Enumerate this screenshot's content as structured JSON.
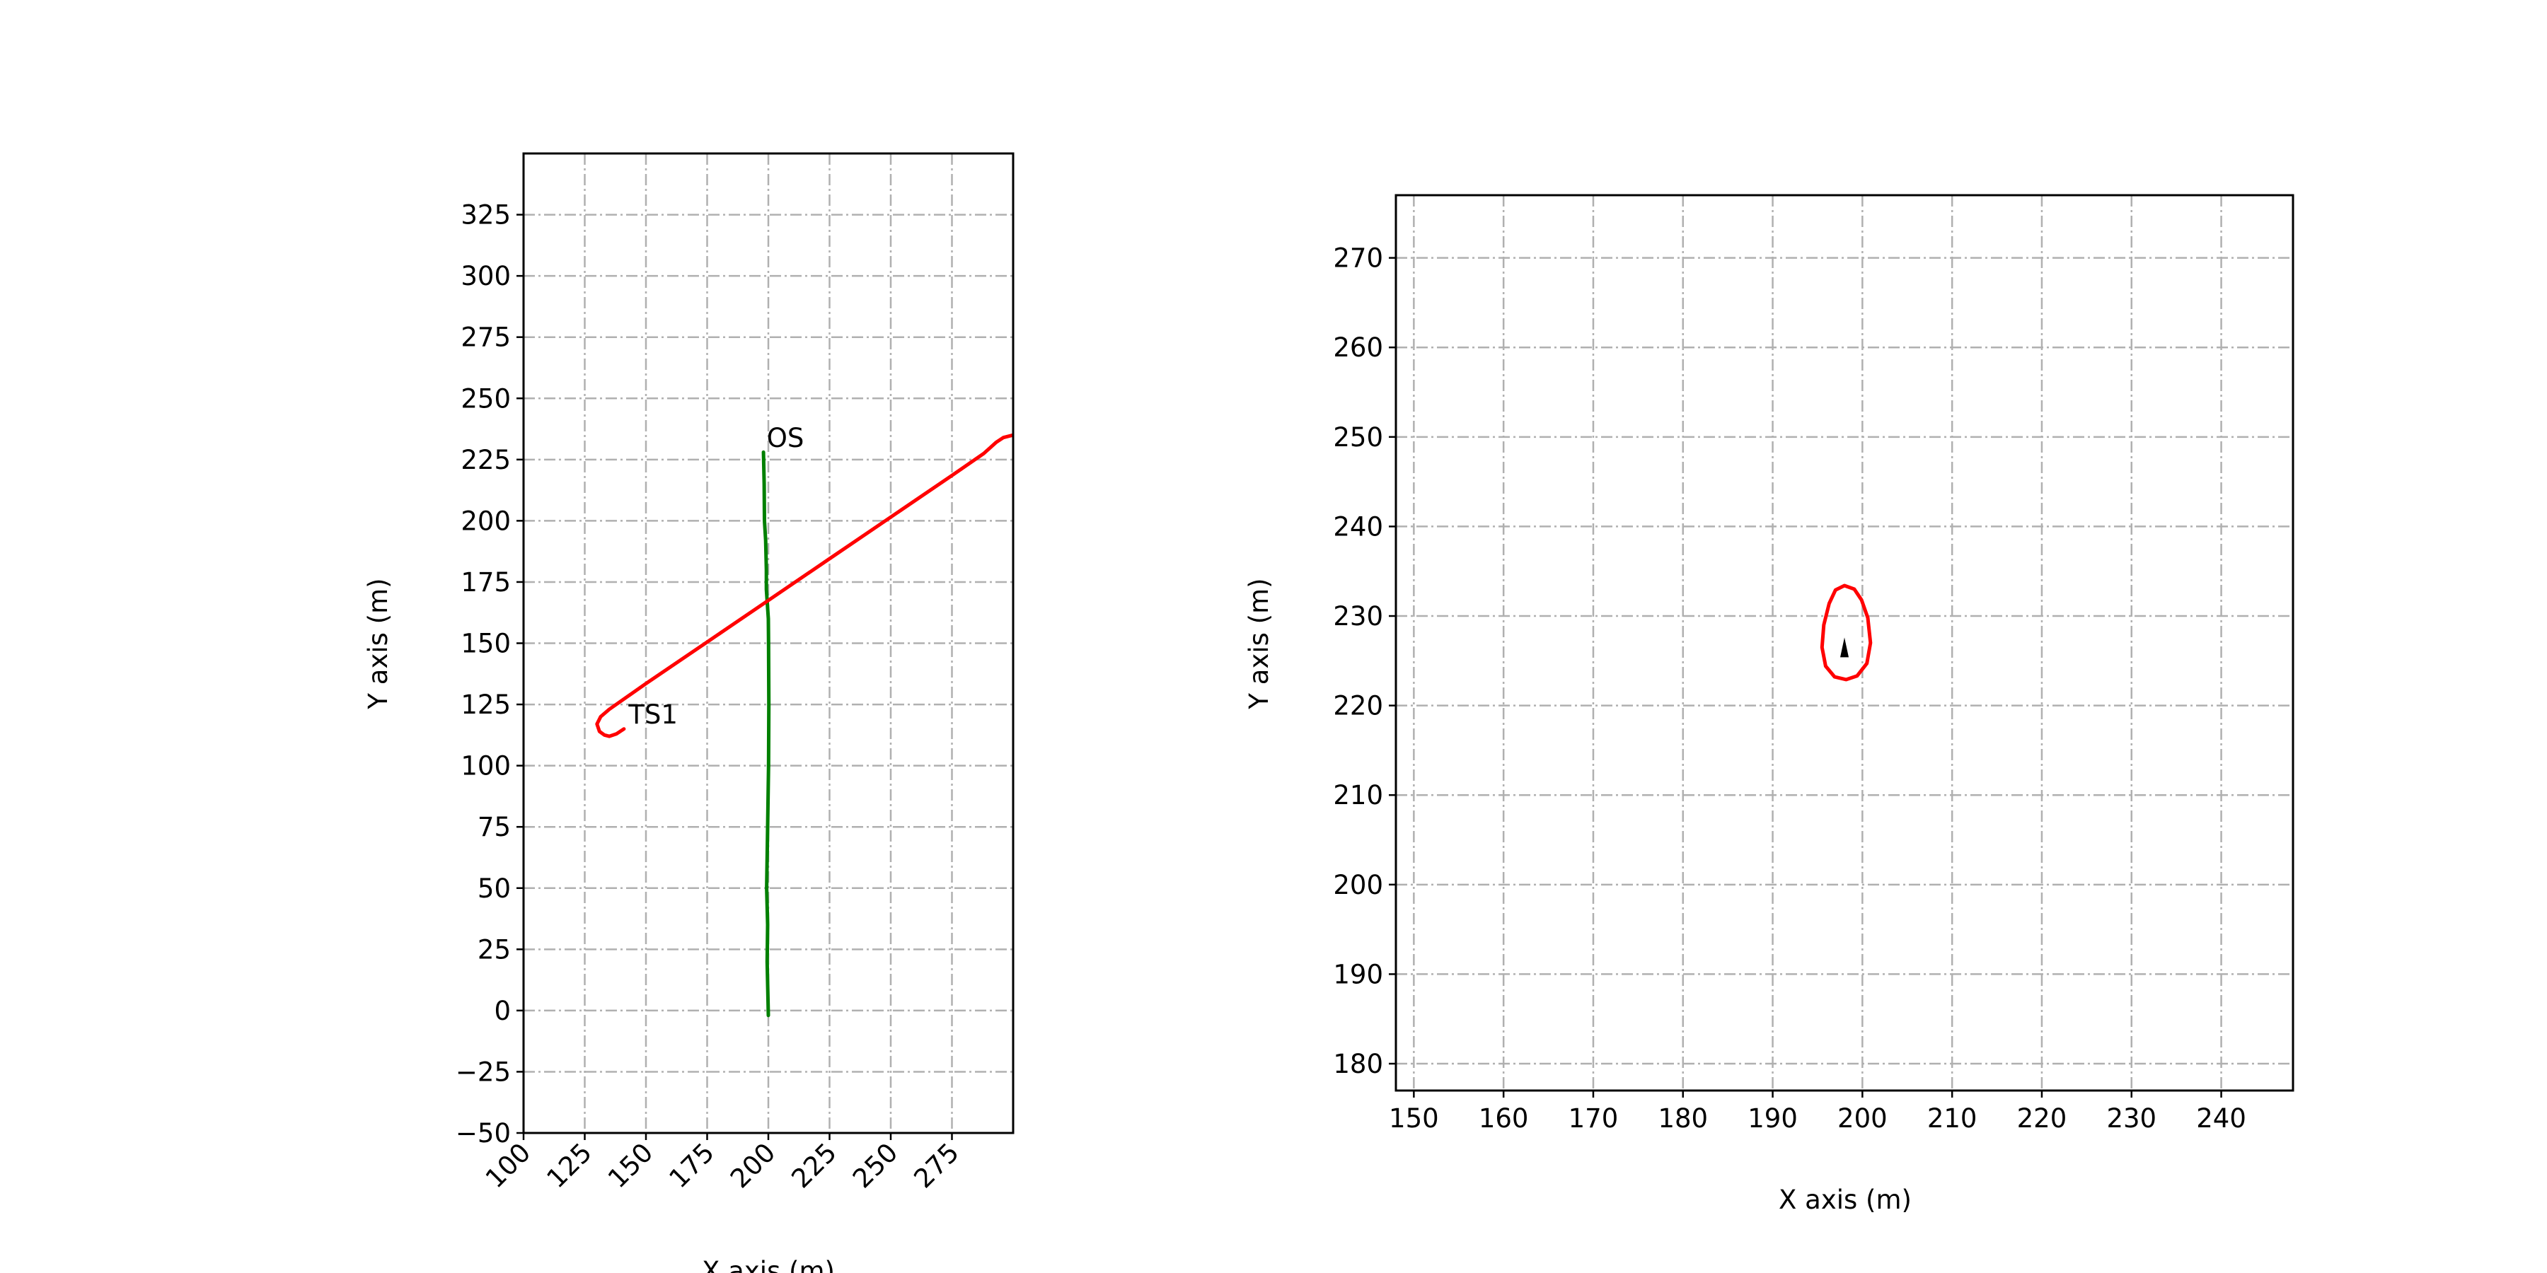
{
  "chart_data": [
    {
      "type": "line",
      "title": "",
      "xlabel": "X axis (m)",
      "ylabel": "Y axis (m)",
      "xlim": [
        100,
        300
      ],
      "ylim": [
        -50,
        350
      ],
      "x_ticks": [
        100,
        125,
        150,
        175,
        200,
        225,
        250,
        275
      ],
      "x_tick_labels": [
        "100",
        "125",
        "150",
        "175",
        "200",
        "225",
        "250",
        "275"
      ],
      "y_ticks": [
        -50,
        -25,
        0,
        25,
        50,
        75,
        100,
        125,
        150,
        175,
        200,
        225,
        250,
        275,
        300,
        325
      ],
      "y_tick_labels": [
        "−50",
        "−25",
        "0",
        "25",
        "50",
        "75",
        "100",
        "125",
        "150",
        "175",
        "200",
        "225",
        "250",
        "275",
        "300",
        "325"
      ],
      "grid": true,
      "series": [
        {
          "color": "#008000",
          "x": [
            200,
            199.5,
            199.7,
            199.3,
            199.7,
            200.1,
            200.2,
            200.1,
            200.0,
            199.2,
            199.2,
            198.9,
            198.4,
            198.3,
            198.0
          ],
          "y": [
            -2,
            20,
            35,
            50,
            75,
            100,
            125,
            150,
            160,
            172,
            180,
            192,
            200,
            215,
            228
          ]
        },
        {
          "color": "#ff0000",
          "x": [
            141,
            138,
            135,
            133,
            131,
            130,
            131.5,
            135,
            150,
            175,
            200,
            225,
            250,
            275,
            288,
            293,
            296,
            300
          ],
          "y": [
            115,
            113,
            112,
            112.5,
            114,
            117,
            120,
            123,
            133.5,
            150.5,
            167.5,
            184.5,
            201.5,
            218.5,
            227.5,
            232,
            234,
            235
          ]
        }
      ],
      "annotations": [
        {
          "text": "OS",
          "x": 198.5,
          "y": 229
        },
        {
          "text": "TS1",
          "x": 142,
          "y": 116
        }
      ]
    },
    {
      "type": "line",
      "title": "",
      "xlabel": "X axis (m)",
      "ylabel": "Y axis (m)",
      "xlim": [
        148,
        248
      ],
      "ylim": [
        177,
        277
      ],
      "x_ticks": [
        150,
        160,
        170,
        180,
        190,
        200,
        210,
        220,
        230,
        240
      ],
      "x_tick_labels": [
        "150",
        "160",
        "170",
        "180",
        "190",
        "200",
        "210",
        "220",
        "230",
        "240"
      ],
      "y_ticks": [
        180,
        190,
        200,
        210,
        220,
        230,
        240,
        250,
        260,
        270
      ],
      "y_tick_labels": [
        "180",
        "190",
        "200",
        "210",
        "220",
        "230",
        "240",
        "250",
        "260",
        "270"
      ],
      "grid": true,
      "series": [
        {
          "color": "#ff0000",
          "closed": true,
          "x": [
            198.0,
            199.1,
            199.9,
            200.6,
            200.9,
            200.5,
            199.4,
            198.2,
            196.9,
            195.9,
            195.5,
            195.7,
            196.3,
            197.0
          ],
          "y": [
            233.4,
            233.0,
            231.8,
            229.8,
            227.0,
            224.7,
            223.3,
            222.9,
            223.2,
            224.4,
            226.5,
            229.0,
            231.4,
            232.9
          ]
        }
      ],
      "markers": [
        {
          "shape": "triangle",
          "color": "#000000",
          "x": 198.0,
          "y": 226.5
        }
      ]
    }
  ]
}
